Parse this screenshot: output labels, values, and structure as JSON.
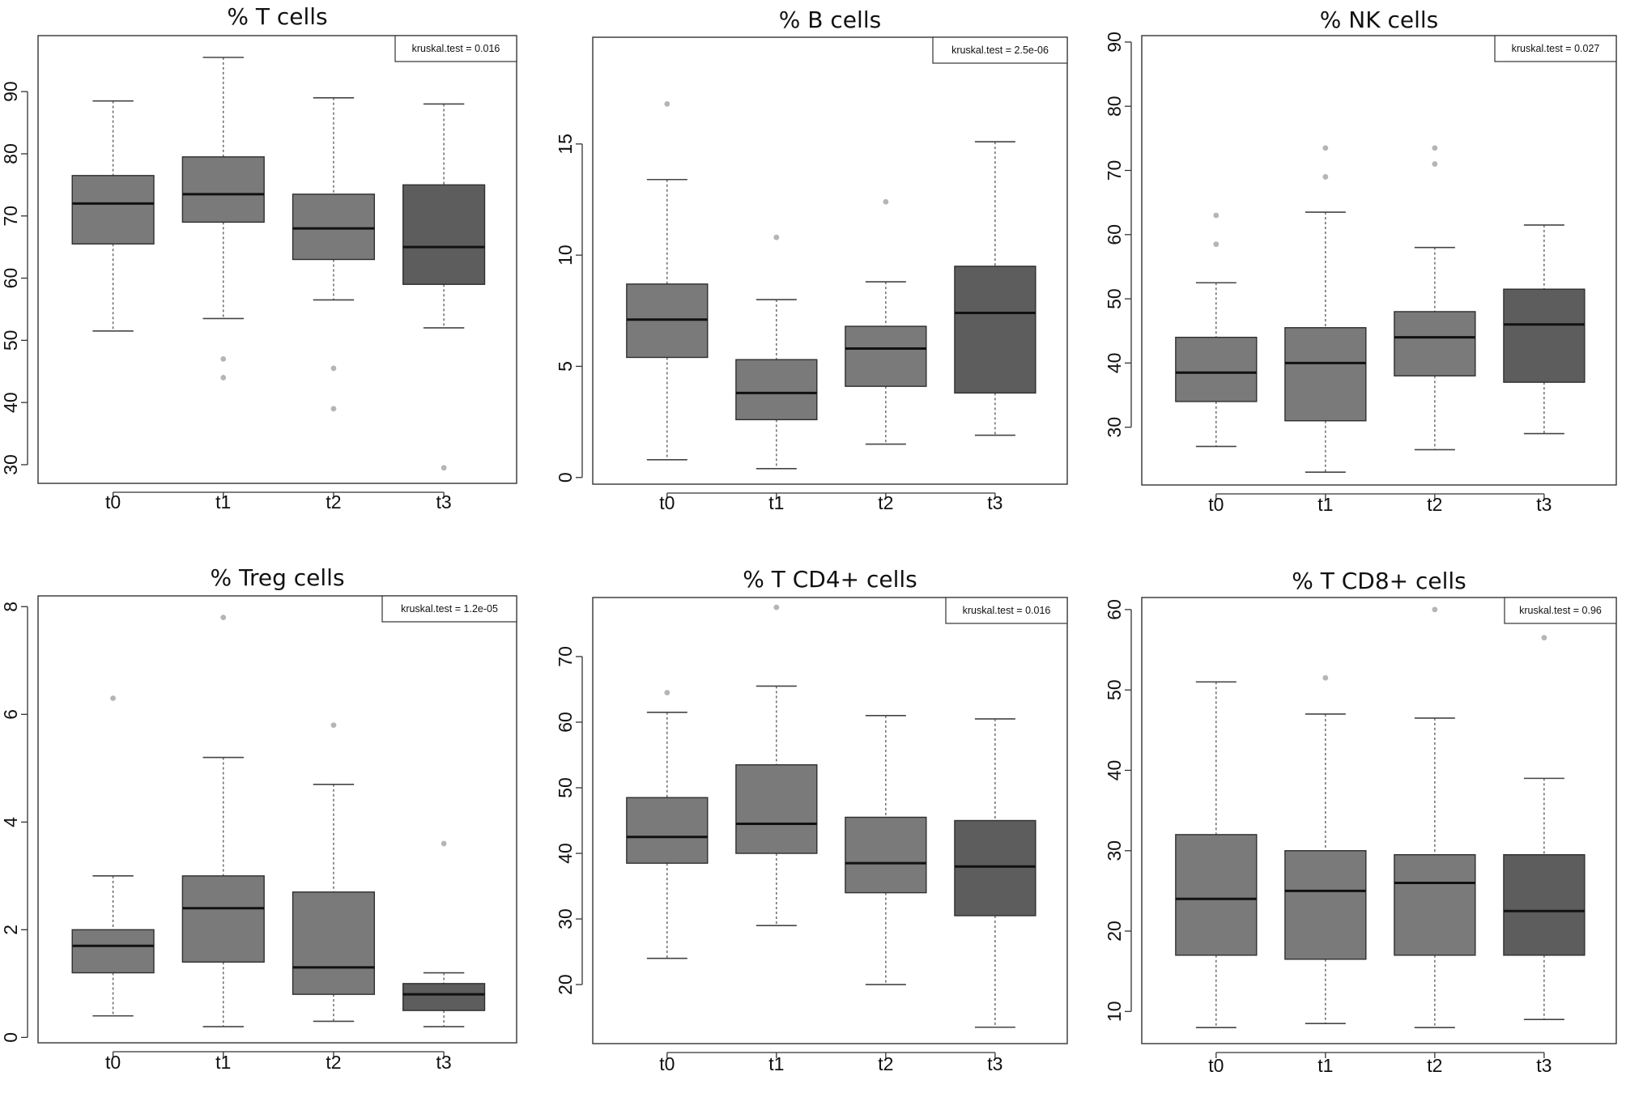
{
  "chart_data": [
    {
      "type": "boxplot",
      "title": "% T cells",
      "categories": [
        "t0",
        "t1",
        "t2",
        "t3"
      ],
      "ylim": [
        27,
        99
      ],
      "yticks": [
        30,
        40,
        50,
        60,
        70,
        80,
        90
      ],
      "test_label": "kruskal.test = 0.016",
      "boxes": [
        {
          "min": 51.5,
          "q1": 65.5,
          "median": 72.0,
          "q3": 76.5,
          "max": 88.5,
          "outliers": [],
          "color": "#7a7a7a"
        },
        {
          "min": 53.5,
          "q1": 69.0,
          "median": 73.5,
          "q3": 79.5,
          "max": 95.5,
          "outliers": [
            47.0,
            44.0
          ],
          "color": "#7a7a7a"
        },
        {
          "min": 56.5,
          "q1": 63.0,
          "median": 68.0,
          "q3": 73.5,
          "max": 89.0,
          "outliers": [
            45.5,
            39.0
          ],
          "color": "#7a7a7a"
        },
        {
          "min": 52.0,
          "q1": 59.0,
          "median": 65.0,
          "q3": 75.0,
          "max": 88.0,
          "outliers": [
            29.5
          ],
          "color": "#5d5d5d"
        }
      ]
    },
    {
      "type": "boxplot",
      "title": "% B cells",
      "categories": [
        "t0",
        "t1",
        "t2",
        "t3"
      ],
      "ylim": [
        -0.3,
        19.8
      ],
      "yticks": [
        0,
        5,
        10,
        15
      ],
      "test_label": "kruskal.test = 2.5e-06",
      "boxes": [
        {
          "min": 0.8,
          "q1": 5.4,
          "median": 7.1,
          "q3": 8.7,
          "max": 13.4,
          "outliers": [
            16.8
          ],
          "color": "#7a7a7a"
        },
        {
          "min": 0.4,
          "q1": 2.6,
          "median": 3.8,
          "q3": 5.3,
          "max": 8.0,
          "outliers": [
            10.8
          ],
          "color": "#7a7a7a"
        },
        {
          "min": 1.5,
          "q1": 4.1,
          "median": 5.8,
          "q3": 6.8,
          "max": 8.8,
          "outliers": [
            12.4
          ],
          "color": "#7a7a7a"
        },
        {
          "min": 1.9,
          "q1": 3.8,
          "median": 7.4,
          "q3": 9.5,
          "max": 15.1,
          "outliers": [],
          "color": "#5d5d5d"
        }
      ]
    },
    {
      "type": "boxplot",
      "title": "% NK cells",
      "categories": [
        "t0",
        "t1",
        "t2",
        "t3"
      ],
      "ylim": [
        21,
        91
      ],
      "yticks": [
        30,
        40,
        50,
        60,
        70,
        80,
        90
      ],
      "test_label": "kruskal.test = 0.027",
      "boxes": [
        {
          "min": 27.0,
          "q1": 34.0,
          "median": 38.5,
          "q3": 44.0,
          "max": 52.5,
          "outliers": [
            58.5,
            63.0
          ],
          "color": "#7a7a7a"
        },
        {
          "min": 23.0,
          "q1": 31.0,
          "median": 40.0,
          "q3": 45.5,
          "max": 63.5,
          "outliers": [
            69.0,
            73.5
          ],
          "color": "#7a7a7a"
        },
        {
          "min": 26.5,
          "q1": 38.0,
          "median": 44.0,
          "q3": 48.0,
          "max": 58.0,
          "outliers": [
            71.0,
            73.5
          ],
          "color": "#7a7a7a"
        },
        {
          "min": 29.0,
          "q1": 37.0,
          "median": 46.0,
          "q3": 51.5,
          "max": 61.5,
          "outliers": [],
          "color": "#5d5d5d"
        }
      ]
    },
    {
      "type": "boxplot",
      "title": "% Treg cells",
      "categories": [
        "t0",
        "t1",
        "t2",
        "t3"
      ],
      "ylim": [
        -0.1,
        8.2
      ],
      "yticks": [
        0,
        2,
        4,
        6,
        8
      ],
      "test_label": "kruskal.test = 1.2e-05",
      "boxes": [
        {
          "min": 0.4,
          "q1": 1.2,
          "median": 1.7,
          "q3": 2.0,
          "max": 3.0,
          "outliers": [
            6.3
          ],
          "color": "#7a7a7a"
        },
        {
          "min": 0.2,
          "q1": 1.4,
          "median": 2.4,
          "q3": 3.0,
          "max": 5.2,
          "outliers": [
            7.8
          ],
          "color": "#7a7a7a"
        },
        {
          "min": 0.3,
          "q1": 0.8,
          "median": 1.3,
          "q3": 2.7,
          "max": 4.7,
          "outliers": [
            5.8
          ],
          "color": "#7a7a7a"
        },
        {
          "min": 0.2,
          "q1": 0.5,
          "median": 0.8,
          "q3": 1.0,
          "max": 1.2,
          "outliers": [
            3.6
          ],
          "color": "#5d5d5d"
        }
      ]
    },
    {
      "type": "boxplot",
      "title": "% T CD4+ cells",
      "categories": [
        "t0",
        "t1",
        "t2",
        "t3"
      ],
      "ylim": [
        11,
        79
      ],
      "yticks": [
        20,
        30,
        40,
        50,
        60,
        70
      ],
      "test_label": "kruskal.test = 0.016",
      "boxes": [
        {
          "min": 24.0,
          "q1": 38.5,
          "median": 42.5,
          "q3": 48.5,
          "max": 61.5,
          "outliers": [
            64.5
          ],
          "color": "#7a7a7a"
        },
        {
          "min": 29.0,
          "q1": 40.0,
          "median": 44.5,
          "q3": 53.5,
          "max": 65.5,
          "outliers": [
            77.5
          ],
          "color": "#7a7a7a"
        },
        {
          "min": 20.0,
          "q1": 34.0,
          "median": 38.5,
          "q3": 45.5,
          "max": 61.0,
          "outliers": [],
          "color": "#7a7a7a"
        },
        {
          "min": 13.5,
          "q1": 30.5,
          "median": 38.0,
          "q3": 45.0,
          "max": 60.5,
          "outliers": [],
          "color": "#5d5d5d"
        }
      ]
    },
    {
      "type": "boxplot",
      "title": "% T CD8+ cells",
      "categories": [
        "t0",
        "t1",
        "t2",
        "t3"
      ],
      "ylim": [
        6,
        61.5
      ],
      "yticks": [
        10,
        20,
        30,
        40,
        50,
        60
      ],
      "test_label": "kruskal.test = 0.96",
      "boxes": [
        {
          "min": 8.0,
          "q1": 17.0,
          "median": 24.0,
          "q3": 32.0,
          "max": 51.0,
          "outliers": [],
          "color": "#7a7a7a"
        },
        {
          "min": 8.5,
          "q1": 16.5,
          "median": 25.0,
          "q3": 30.0,
          "max": 47.0,
          "outliers": [
            51.5
          ],
          "color": "#7a7a7a"
        },
        {
          "min": 8.0,
          "q1": 17.0,
          "median": 26.0,
          "q3": 29.5,
          "max": 46.5,
          "outliers": [
            60.0
          ],
          "color": "#7a7a7a"
        },
        {
          "min": 9.0,
          "q1": 17.0,
          "median": 22.5,
          "q3": 29.5,
          "max": 39.0,
          "outliers": [
            56.5
          ],
          "color": "#5d5d5d"
        }
      ]
    }
  ]
}
